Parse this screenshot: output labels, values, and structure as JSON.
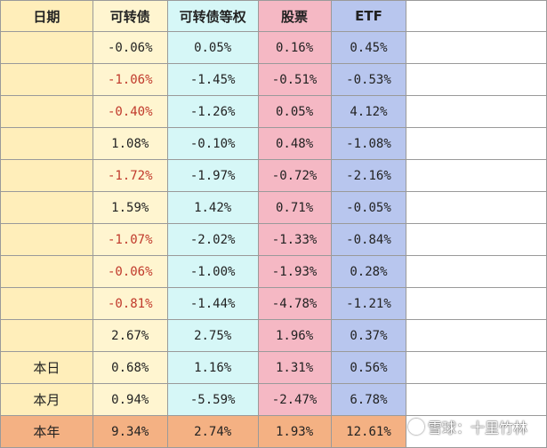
{
  "header": [
    "日期",
    "可转债",
    "可转债等权",
    "股票",
    "ETF"
  ],
  "rows": [
    {
      "date": "",
      "v": [
        "-0.06%",
        "0.05%",
        "0.16%",
        "0.45%"
      ]
    },
    {
      "date": "",
      "v": [
        "-1.06%",
        "-1.45%",
        "-0.51%",
        "-0.53%"
      ]
    },
    {
      "date": "",
      "v": [
        "-0.40%",
        "-1.26%",
        "0.05%",
        "4.12%"
      ]
    },
    {
      "date": "",
      "v": [
        "1.08%",
        "-0.10%",
        "0.48%",
        "-1.08%"
      ]
    },
    {
      "date": "",
      "v": [
        "-1.72%",
        "-1.97%",
        "-0.72%",
        "-2.16%"
      ]
    },
    {
      "date": "",
      "v": [
        "1.59%",
        "1.42%",
        "0.71%",
        "-0.05%"
      ]
    },
    {
      "date": "",
      "v": [
        "-1.07%",
        "-2.02%",
        "-1.33%",
        "-0.84%"
      ]
    },
    {
      "date": "",
      "v": [
        "-0.06%",
        "-1.00%",
        "-1.93%",
        "0.28%"
      ]
    },
    {
      "date": "",
      "v": [
        "-0.81%",
        "-1.44%",
        "-4.78%",
        "-1.21%"
      ]
    },
    {
      "date": "",
      "v": [
        "2.67%",
        "2.75%",
        "1.96%",
        "0.37%"
      ]
    },
    {
      "date": "本日",
      "v": [
        "0.68%",
        "1.16%",
        "1.31%",
        "0.56%"
      ]
    },
    {
      "date": "本月",
      "v": [
        "0.94%",
        "-5.59%",
        "-2.47%",
        "6.78%"
      ]
    },
    {
      "date": "本年",
      "v": [
        "9.34%",
        "2.74%",
        "1.93%",
        "12.61%"
      ]
    }
  ],
  "red_column_first": [
    1,
    2,
    4,
    6,
    7,
    8
  ],
  "colors": {
    "date": "#ffeeba",
    "cb": "#fff5d0",
    "cb_eq": "#d6f7f7",
    "stock": "#f5b8c4",
    "etf": "#b8c6ee",
    "year": "#f4b183"
  },
  "watermark": "雪球：十里竹林"
}
